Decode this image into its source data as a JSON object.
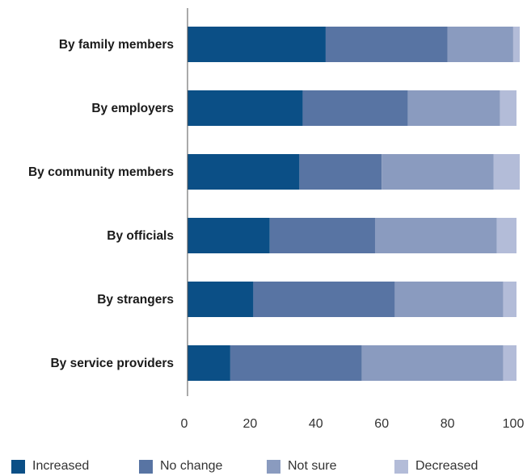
{
  "chart_data": {
    "type": "bar",
    "orientation": "horizontal",
    "stacked": true,
    "categories": [
      "By family members",
      "By employers",
      "By community members",
      "By officials",
      "By strangers",
      "By service providers"
    ],
    "series": [
      {
        "name": "Increased",
        "color": "#0b4f86",
        "values": [
          42,
          35,
          34,
          25,
          20,
          13
        ]
      },
      {
        "name": "No change",
        "color": "#5874a3",
        "values": [
          37,
          32,
          25,
          32,
          43,
          40
        ]
      },
      {
        "name": "Not sure",
        "color": "#8a9bbf",
        "values": [
          20,
          28,
          34,
          37,
          33,
          43
        ]
      },
      {
        "name": "Decreased",
        "color": "#b3bcd8",
        "values": [
          2,
          5,
          8,
          6,
          4,
          4
        ]
      }
    ],
    "xlim": [
      0,
      100
    ],
    "xticks": [
      "0",
      "20",
      "40",
      "60",
      "80",
      "100"
    ],
    "grid": false,
    "legend_position": "bottom"
  }
}
